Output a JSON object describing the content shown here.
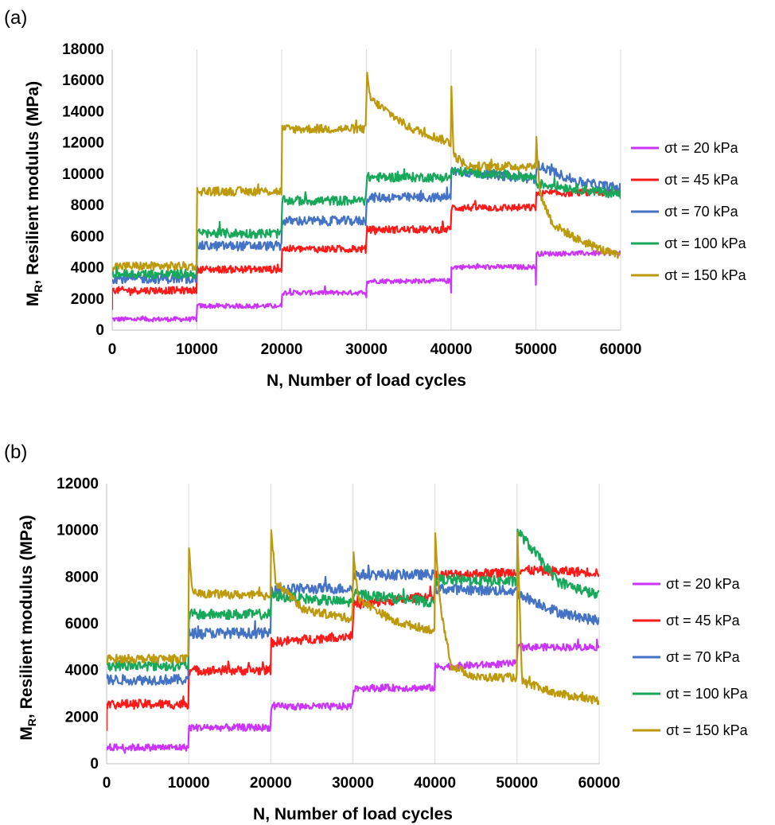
{
  "chart_data": [
    {
      "panel": "(a)",
      "type": "line",
      "xlabel": "N, Number of load cycles",
      "ylabel_main": "M",
      "ylabel_sub": "R",
      "ylabel_rest": ", Resilient modulus (MPa)",
      "xlim": [
        0,
        60000
      ],
      "ylim": [
        0,
        18000
      ],
      "xticks": [
        0,
        10000,
        20000,
        30000,
        40000,
        50000,
        60000
      ],
      "yticks": [
        0,
        2000,
        4000,
        6000,
        8000,
        10000,
        12000,
        14000,
        16000,
        18000
      ],
      "grid": "vertical",
      "legend_position": "right",
      "series": [
        {
          "name": "σt = 20 kPa",
          "color": "#cc33ff",
          "x": [
            0,
            9990,
            10010,
            19990,
            20010,
            29990,
            30010,
            39990,
            40010,
            49990,
            50010,
            60000
          ],
          "y": [
            700,
            700,
            1550,
            1550,
            2400,
            2400,
            3150,
            3150,
            4050,
            4050,
            4900,
            4950
          ],
          "noise": 150,
          "spikes": [
            {
              "x": 50000,
              "y": 2900
            },
            {
              "x": 40000,
              "y": 2400
            },
            {
              "x": 30000,
              "y": 2100
            }
          ]
        },
        {
          "name": "σt = 45 kPa",
          "color": "#ff1a1a",
          "x": [
            0,
            9990,
            10010,
            19990,
            20010,
            29990,
            30010,
            39990,
            40010,
            49990,
            50010,
            60000
          ],
          "y": [
            2550,
            2550,
            3900,
            3900,
            5200,
            5200,
            6450,
            6450,
            7850,
            7850,
            8750,
            8850
          ],
          "noise": 230,
          "spikes": [
            {
              "x": 0,
              "y": 1300
            }
          ]
        },
        {
          "name": "σt = 70 kPa",
          "color": "#4472c4",
          "x": [
            0,
            9990,
            10010,
            19990,
            20010,
            29990,
            30010,
            39990,
            40010,
            49990,
            50010,
            55000,
            60000
          ],
          "y": [
            3300,
            3300,
            5400,
            5400,
            7000,
            7000,
            8500,
            8500,
            10200,
            9700,
            10600,
            9500,
            9100
          ],
          "noise": 300,
          "spikes": []
        },
        {
          "name": "σt = 100 kPa",
          "color": "#17a85a",
          "x": [
            0,
            9990,
            10010,
            19990,
            20010,
            29990,
            30010,
            39990,
            40010,
            49990,
            50010,
            60000
          ],
          "y": [
            3600,
            3600,
            6200,
            6200,
            8300,
            8300,
            9800,
            9800,
            10200,
            9800,
            9400,
            8700
          ],
          "noise": 300,
          "spikes": []
        },
        {
          "name": "σt = 150 kPa",
          "color": "#bd9a0d",
          "x": [
            0,
            9990,
            10010,
            19990,
            20010,
            29990,
            30010,
            30500,
            35000,
            39990,
            40010,
            40300,
            42000,
            49990,
            50010,
            50500,
            52000,
            55000,
            58000,
            60000
          ],
          "y": [
            4100,
            4100,
            8900,
            8900,
            12900,
            12900,
            16500,
            14800,
            13000,
            12000,
            15900,
            11200,
            10500,
            10500,
            12500,
            8700,
            6800,
            5800,
            5100,
            4700
          ],
          "noise": 280,
          "spikes": []
        }
      ]
    },
    {
      "panel": "(b)",
      "type": "line",
      "xlabel": "N, Number of load cycles",
      "ylabel_main": "M",
      "ylabel_sub": "R",
      "ylabel_rest": ", Resilient modulus (MPa)",
      "xlim": [
        0,
        60000
      ],
      "ylim": [
        0,
        12000
      ],
      "xticks": [
        0,
        10000,
        20000,
        30000,
        40000,
        50000,
        60000
      ],
      "yticks": [
        0,
        2000,
        4000,
        6000,
        8000,
        10000,
        12000
      ],
      "grid": "vertical",
      "legend_position": "right",
      "series": [
        {
          "name": "σt = 20 kPa",
          "color": "#cc33ff",
          "x": [
            0,
            9990,
            10010,
            19990,
            20010,
            29990,
            30010,
            39990,
            40010,
            49990,
            50010,
            60000
          ],
          "y": [
            700,
            700,
            1550,
            1550,
            2450,
            2450,
            3250,
            3250,
            4150,
            4300,
            5000,
            5000
          ],
          "noise": 150,
          "spikes": []
        },
        {
          "name": "σt = 45 kPa",
          "color": "#ff1a1a",
          "x": [
            0,
            9990,
            10010,
            19990,
            20010,
            29990,
            30010,
            39990,
            40010,
            49990,
            50010,
            60000
          ],
          "y": [
            2550,
            2550,
            4000,
            4000,
            5200,
            5500,
            6800,
            7200,
            8100,
            8200,
            8300,
            8200
          ],
          "noise": 200,
          "spikes": [
            {
              "x": 0,
              "y": 1400
            }
          ]
        },
        {
          "name": "σt = 70 kPa",
          "color": "#4472c4",
          "x": [
            0,
            9990,
            10010,
            19990,
            20010,
            29990,
            30010,
            39990,
            40010,
            49990,
            50010,
            55000,
            60000
          ],
          "y": [
            3600,
            3600,
            5600,
            5600,
            7500,
            7500,
            8100,
            8100,
            7500,
            7400,
            7300,
            6500,
            6100
          ],
          "noise": 220,
          "spikes": []
        },
        {
          "name": "σt = 100 kPa",
          "color": "#17a85a",
          "x": [
            0,
            9990,
            10010,
            19990,
            20010,
            29990,
            30010,
            39990,
            40010,
            49990,
            50010,
            55000,
            60000
          ],
          "y": [
            4200,
            4200,
            6400,
            6400,
            7200,
            6900,
            7300,
            6900,
            7900,
            7800,
            10000,
            7800,
            7200
          ],
          "noise": 220,
          "spikes": []
        },
        {
          "name": "σt = 150 kPa",
          "color": "#bd9a0d",
          "x": [
            0,
            9990,
            10010,
            10500,
            19990,
            20010,
            20600,
            24000,
            29990,
            30010,
            30600,
            35000,
            39990,
            40010,
            40600,
            42000,
            45000,
            49990,
            50010,
            50600,
            55000,
            60000
          ],
          "y": [
            4500,
            4500,
            9200,
            7300,
            7200,
            10200,
            7800,
            6600,
            6200,
            9300,
            7100,
            6100,
            5700,
            9800,
            6800,
            4200,
            3700,
            3700,
            10300,
            3500,
            3000,
            2700
          ],
          "noise": 180,
          "spikes": []
        }
      ]
    }
  ]
}
